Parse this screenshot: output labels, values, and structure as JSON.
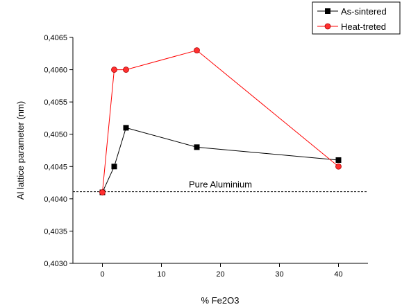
{
  "chart_data": {
    "type": "line",
    "xlabel": "% Fe2O3",
    "ylabel": "Al lattice parameter (nm)",
    "xlim": [
      -5,
      45
    ],
    "ylim": [
      0.403,
      0.4065
    ],
    "x_ticks": [
      0,
      10,
      20,
      30,
      40
    ],
    "x_tick_labels": [
      "0",
      "10",
      "20",
      "30",
      "40"
    ],
    "y_ticks": [
      0.403,
      0.4035,
      0.404,
      0.4045,
      0.405,
      0.4055,
      0.406,
      0.4065
    ],
    "y_tick_labels": [
      "0,4030",
      "0,4035",
      "0,4040",
      "0,4045",
      "0,4050",
      "0,4055",
      "0,4060",
      "0,4065"
    ],
    "grid": false,
    "legend_position": "top-right",
    "series": [
      {
        "name": "As-sintered",
        "color": "#000000",
        "marker": "square",
        "points": [
          {
            "x": 0,
            "y": 0.4041
          },
          {
            "x": 2,
            "y": 0.4045
          },
          {
            "x": 4,
            "y": 0.4051
          },
          {
            "x": 16,
            "y": 0.4048
          },
          {
            "x": 40,
            "y": 0.4046
          }
        ]
      },
      {
        "name": "Heat-treted",
        "color": "#ff0000",
        "marker": "circle",
        "points": [
          {
            "x": 0,
            "y": 0.4041
          },
          {
            "x": 2,
            "y": 0.406
          },
          {
            "x": 4,
            "y": 0.406
          },
          {
            "x": 16,
            "y": 0.4063
          },
          {
            "x": 40,
            "y": 0.4045
          }
        ]
      }
    ],
    "reference_line": {
      "y": 0.40411,
      "label": "Pure Aluminium",
      "style": "dashed"
    }
  }
}
